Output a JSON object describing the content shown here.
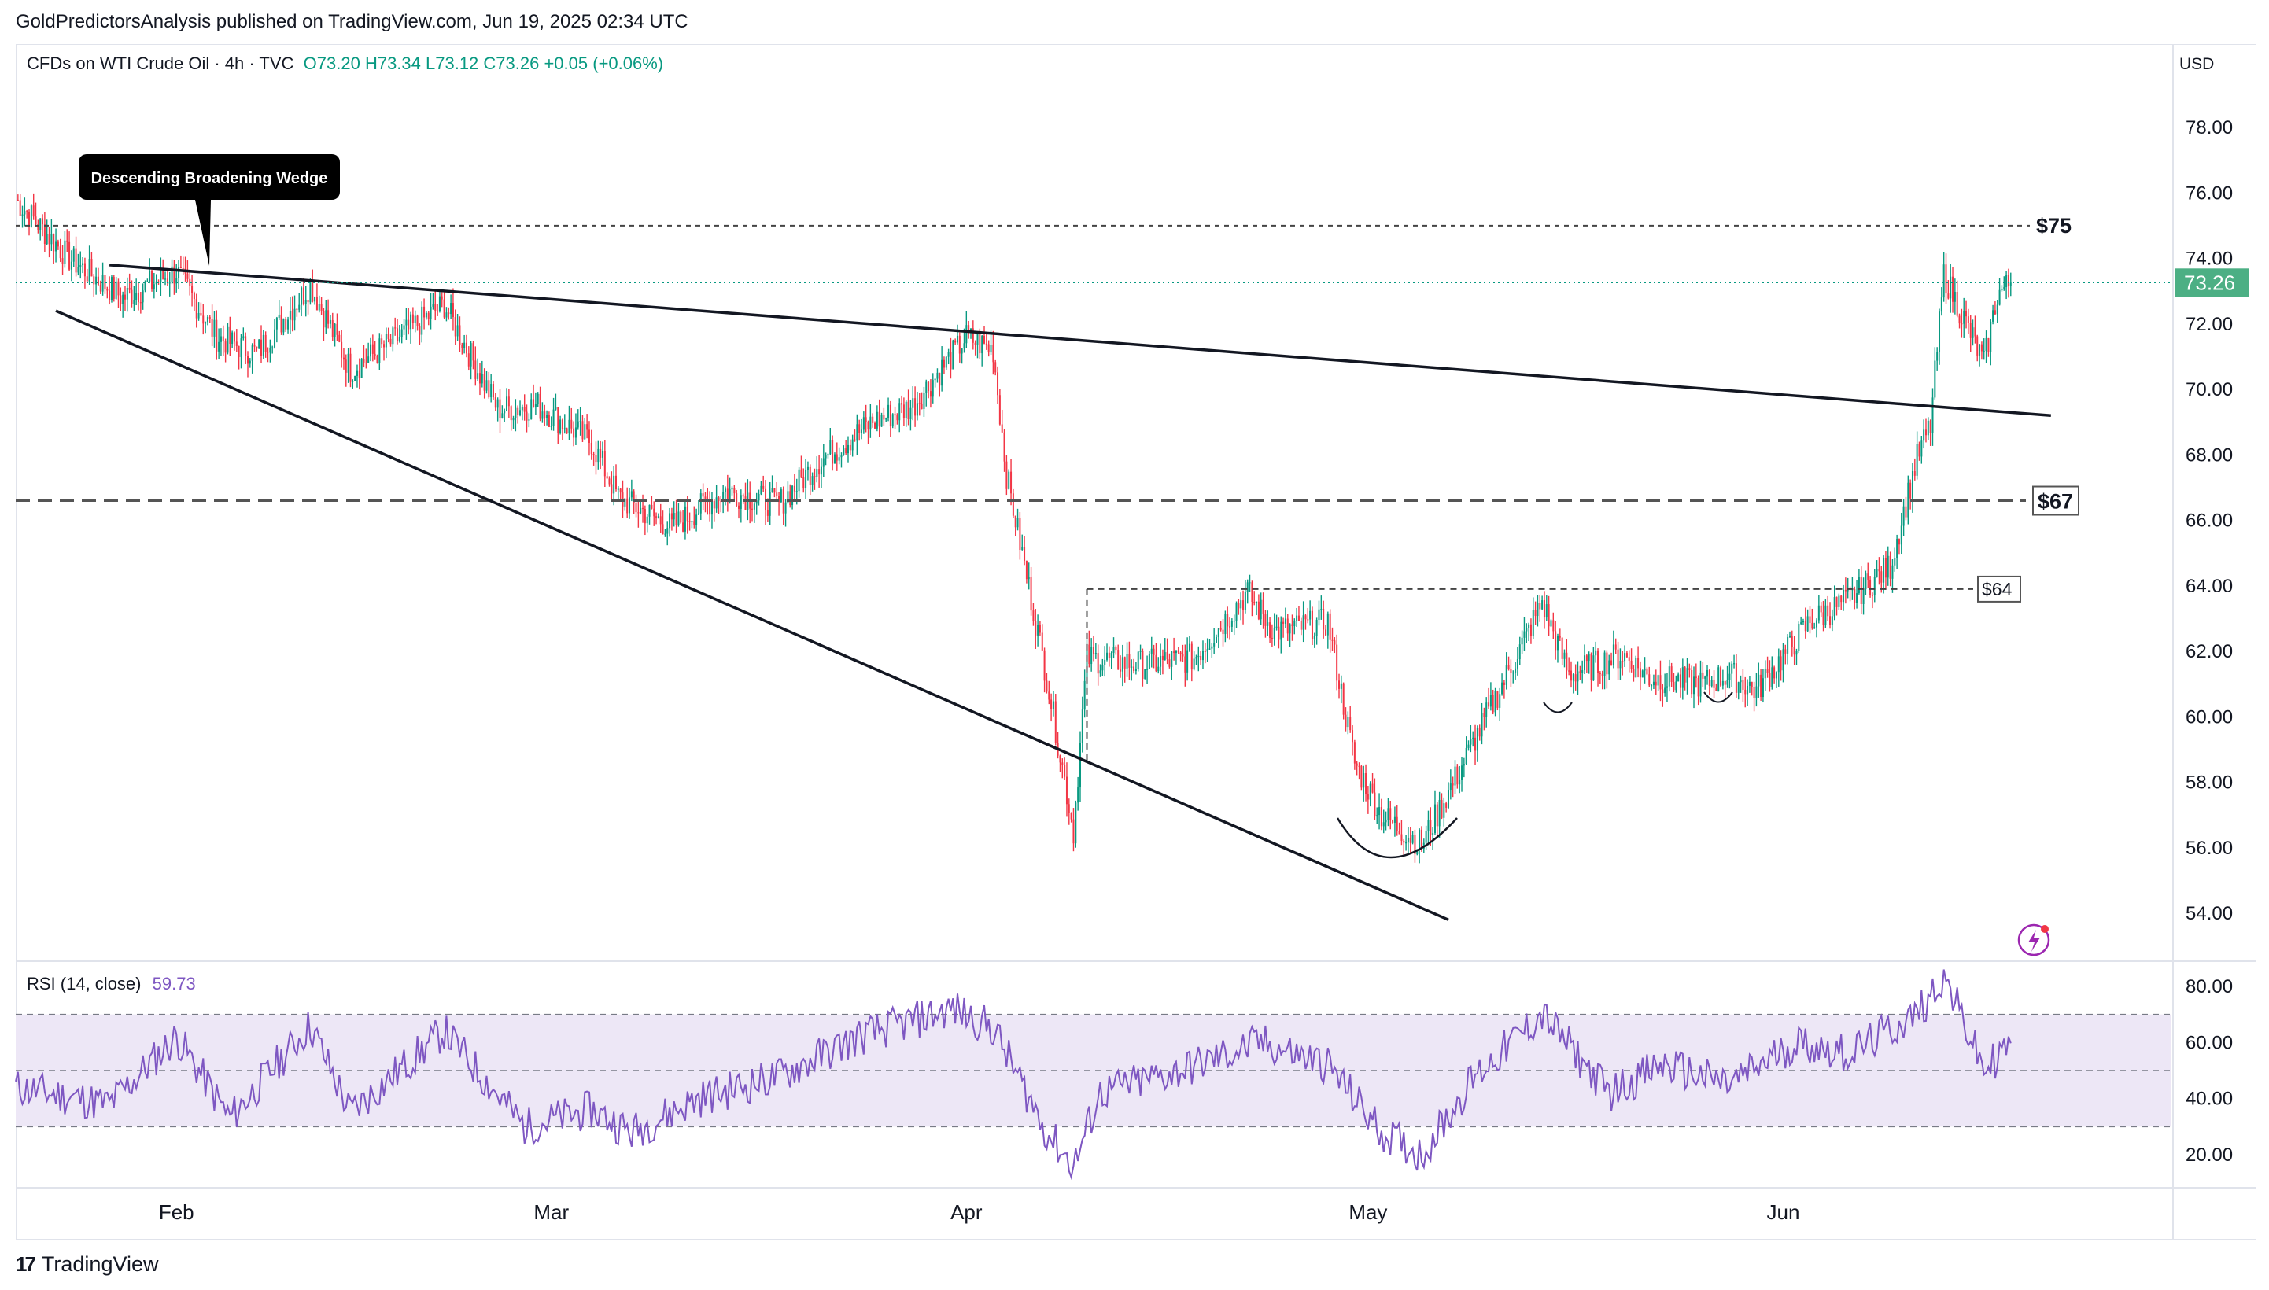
{
  "header": {
    "publisher_line": "GoldPredictorsAnalysis published on TradingView.com, Jun 19, 2025 02:34 UTC"
  },
  "legend": {
    "symbol": "CFDs on WTI Crude Oil · 4h · TVC",
    "ohlc": "O73.20  H73.34  L73.12  C73.26  +0.05 (+0.06%)"
  },
  "price_axis": {
    "currency": "USD",
    "last_price": "73.26",
    "last_price_color": "#4caf84"
  },
  "rsi_legend": {
    "label": "RSI (14, close)",
    "value": "59.73"
  },
  "footer": {
    "brand": "TradingView",
    "logo": "17"
  },
  "colors": {
    "up": "#089981",
    "down": "#f23645",
    "rsi_line": "#7e57c2",
    "rsi_band": "#ede7f6",
    "trendline": "#131722"
  },
  "chart_data": [
    {
      "type": "candlestick",
      "symbol": "CFDs on WTI Crude Oil",
      "interval": "4h",
      "ylim": [
        53,
        79
      ],
      "y_ticks": [
        "54.00",
        "56.00",
        "58.00",
        "60.00",
        "62.00",
        "64.00",
        "66.00",
        "68.00",
        "70.00",
        "72.00",
        "74.00",
        "76.00",
        "78.00"
      ],
      "x_ticks": [
        "Feb",
        "Mar",
        "Apr",
        "May",
        "Jun"
      ],
      "x_range": [
        "2025-01-20",
        "2025-06-30"
      ],
      "approx_close_path": [
        {
          "date": "2025-01-20",
          "close": 75.8
        },
        {
          "date": "2025-01-24",
          "close": 74.0
        },
        {
          "date": "2025-01-28",
          "close": 72.8
        },
        {
          "date": "2025-02-01",
          "close": 73.6
        },
        {
          "date": "2025-02-04",
          "close": 71.6
        },
        {
          "date": "2025-02-07",
          "close": 71.1
        },
        {
          "date": "2025-02-11",
          "close": 73.2
        },
        {
          "date": "2025-02-14",
          "close": 70.6
        },
        {
          "date": "2025-02-18",
          "close": 71.7
        },
        {
          "date": "2025-02-21",
          "close": 72.6
        },
        {
          "date": "2025-02-25",
          "close": 69.4
        },
        {
          "date": "2025-02-28",
          "close": 69.5
        },
        {
          "date": "2025-03-04",
          "close": 68.4
        },
        {
          "date": "2025-03-06",
          "close": 66.7
        },
        {
          "date": "2025-03-10",
          "close": 65.8
        },
        {
          "date": "2025-03-14",
          "close": 66.9
        },
        {
          "date": "2025-03-18",
          "close": 66.5
        },
        {
          "date": "2025-03-21",
          "close": 67.8
        },
        {
          "date": "2025-03-25",
          "close": 69.0
        },
        {
          "date": "2025-03-28",
          "close": 69.5
        },
        {
          "date": "2025-04-01",
          "close": 71.6
        },
        {
          "date": "2025-04-03",
          "close": 71.2
        },
        {
          "date": "2025-04-04",
          "close": 67.4
        },
        {
          "date": "2025-04-07",
          "close": 61.2
        },
        {
          "date": "2025-04-09",
          "close": 56.5
        },
        {
          "date": "2025-04-10",
          "close": 61.8
        },
        {
          "date": "2025-04-14",
          "close": 61.6
        },
        {
          "date": "2025-04-18",
          "close": 61.8
        },
        {
          "date": "2025-04-22",
          "close": 63.8
        },
        {
          "date": "2025-04-24",
          "close": 62.6
        },
        {
          "date": "2025-04-28",
          "close": 62.9
        },
        {
          "date": "2025-04-30",
          "close": 58.6
        },
        {
          "date": "2025-05-02",
          "close": 57.0
        },
        {
          "date": "2025-05-05",
          "close": 56.1
        },
        {
          "date": "2025-05-08",
          "close": 58.5
        },
        {
          "date": "2025-05-12",
          "close": 61.8
        },
        {
          "date": "2025-05-14",
          "close": 63.5
        },
        {
          "date": "2025-05-16",
          "close": 61.3
        },
        {
          "date": "2025-05-20",
          "close": 61.9
        },
        {
          "date": "2025-05-22",
          "close": 61.2
        },
        {
          "date": "2025-05-26",
          "close": 61.0
        },
        {
          "date": "2025-05-28",
          "close": 61.3
        },
        {
          "date": "2025-05-30",
          "close": 60.8
        },
        {
          "date": "2025-06-03",
          "close": 62.9
        },
        {
          "date": "2025-06-06",
          "close": 63.6
        },
        {
          "date": "2025-06-09",
          "close": 64.6
        },
        {
          "date": "2025-06-11",
          "close": 67.9
        },
        {
          "date": "2025-06-12",
          "close": 68.9
        },
        {
          "date": "2025-06-13",
          "close": 73.5
        },
        {
          "date": "2025-06-16",
          "close": 70.8
        },
        {
          "date": "2025-06-17",
          "close": 72.9
        },
        {
          "date": "2025-06-18",
          "close": 73.26
        }
      ],
      "levels": [
        {
          "label": "$75",
          "price": 75.0
        },
        {
          "label": "$67",
          "price": 66.6
        },
        {
          "label": "$64",
          "price": 63.9
        }
      ],
      "trendlines": [
        {
          "from": {
            "date": "2025-01-27",
            "price": 73.8
          },
          "to": {
            "date": "2025-06-21",
            "price": 69.2
          }
        },
        {
          "from": {
            "date": "2025-01-23",
            "price": 72.4
          },
          "to": {
            "date": "2025-05-07",
            "price": 53.8
          }
        }
      ],
      "annotations": [
        {
          "text": "Descending Broadening Wedge"
        }
      ]
    },
    {
      "type": "line",
      "name": "RSI (14, close)",
      "ylim": [
        10,
        85
      ],
      "y_ticks": [
        "20.00",
        "40.00",
        "60.00",
        "80.00"
      ],
      "bands": [
        70,
        50,
        30
      ],
      "last_value": 59.73,
      "approx_path": [
        {
          "date": "2025-01-20",
          "value": 44
        },
        {
          "date": "2025-01-27",
          "value": 38
        },
        {
          "date": "2025-02-01",
          "value": 62
        },
        {
          "date": "2025-02-05",
          "value": 33
        },
        {
          "date": "2025-02-11",
          "value": 66
        },
        {
          "date": "2025-02-14",
          "value": 35
        },
        {
          "date": "2025-02-21",
          "value": 64
        },
        {
          "date": "2025-02-27",
          "value": 30
        },
        {
          "date": "2025-03-04",
          "value": 36
        },
        {
          "date": "2025-03-07",
          "value": 28
        },
        {
          "date": "2025-03-12",
          "value": 40
        },
        {
          "date": "2025-03-18",
          "value": 48
        },
        {
          "date": "2025-03-24",
          "value": 62
        },
        {
          "date": "2025-03-31",
          "value": 72
        },
        {
          "date": "2025-04-03",
          "value": 65
        },
        {
          "date": "2025-04-07",
          "value": 28
        },
        {
          "date": "2025-04-09",
          "value": 16
        },
        {
          "date": "2025-04-11",
          "value": 42
        },
        {
          "date": "2025-04-17",
          "value": 50
        },
        {
          "date": "2025-04-23",
          "value": 60
        },
        {
          "date": "2025-04-28",
          "value": 52
        },
        {
          "date": "2025-05-02",
          "value": 28
        },
        {
          "date": "2025-05-05",
          "value": 20
        },
        {
          "date": "2025-05-09",
          "value": 48
        },
        {
          "date": "2025-05-14",
          "value": 70
        },
        {
          "date": "2025-05-19",
          "value": 42
        },
        {
          "date": "2025-05-23",
          "value": 52
        },
        {
          "date": "2025-05-28",
          "value": 45
        },
        {
          "date": "2025-06-02",
          "value": 60
        },
        {
          "date": "2025-06-06",
          "value": 56
        },
        {
          "date": "2025-06-11",
          "value": 70
        },
        {
          "date": "2025-06-13",
          "value": 84
        },
        {
          "date": "2025-06-16",
          "value": 50
        },
        {
          "date": "2025-06-18",
          "value": 59.73
        }
      ]
    }
  ]
}
